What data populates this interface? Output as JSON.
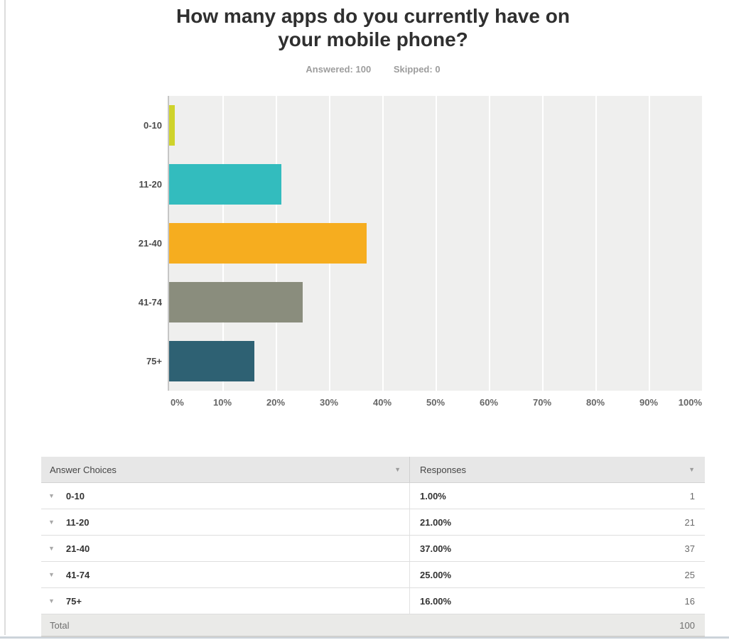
{
  "page": {
    "title_line1": "How many apps do you currently have on",
    "title_line2": "your mobile phone?",
    "answered_label": "Answered: 100",
    "skipped_label": "Skipped: 0"
  },
  "chart_data": {
    "type": "bar",
    "orientation": "horizontal",
    "title": "How many apps do you currently have on your mobile phone?",
    "categories": [
      "0-10",
      "11-20",
      "21-40",
      "41-74",
      "75+"
    ],
    "values": [
      1,
      21,
      37,
      25,
      16
    ],
    "value_unit": "percent",
    "bar_colors": [
      "#CFD32B",
      "#33BCBE",
      "#F6AD1F",
      "#8A8D7D",
      "#2E6173"
    ],
    "x_ticks": [
      "0%",
      "10%",
      "20%",
      "30%",
      "40%",
      "50%",
      "60%",
      "70%",
      "80%",
      "90%",
      "100%"
    ],
    "xlim": [
      0,
      100
    ],
    "grid": true,
    "plot_background": "#EFEFEE",
    "gridline_color": "#FFFFFF"
  },
  "table": {
    "header_choices": "Answer Choices",
    "header_responses": "Responses",
    "header_arrow_glyph": "▼",
    "row_arrow_glyph": "▼",
    "rows": [
      {
        "choice": "0-10",
        "percent": "1.00%",
        "count": "1"
      },
      {
        "choice": "11-20",
        "percent": "21.00%",
        "count": "21"
      },
      {
        "choice": "21-40",
        "percent": "37.00%",
        "count": "37"
      },
      {
        "choice": "41-74",
        "percent": "25.00%",
        "count": "25"
      },
      {
        "choice": "75+",
        "percent": "16.00%",
        "count": "16"
      }
    ],
    "total_label": "Total",
    "total_value": "100"
  }
}
